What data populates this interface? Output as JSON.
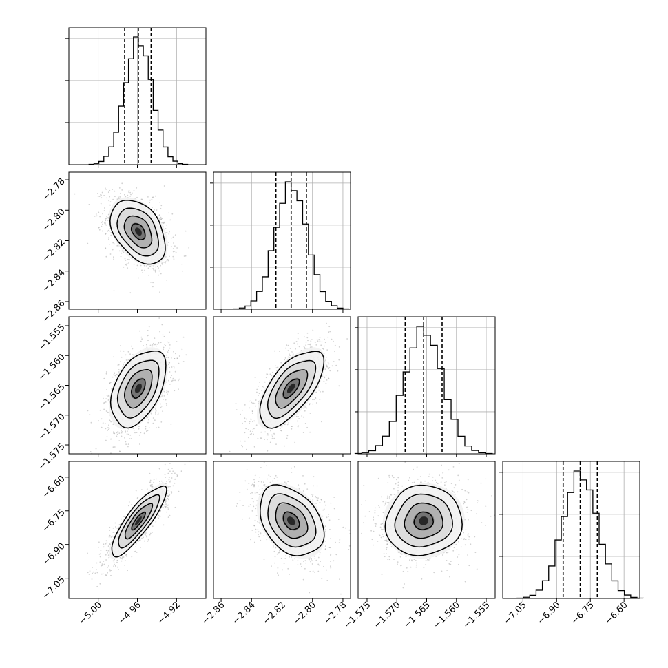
{
  "chart_data": {
    "type": "corner",
    "title": "",
    "grid": true,
    "colors": {
      "line": "#000000",
      "points": "#9a9a9a",
      "grid": "#b0b0b0"
    },
    "params": [
      {
        "index": 0,
        "range": [
          -5.03,
          -4.89
        ],
        "ticks": [
          -5.0,
          -4.96,
          -4.92
        ],
        "tick_labels": [
          "−5.00",
          "−4.96",
          "−4.92"
        ],
        "mean": -4.959,
        "sd": 0.014,
        "quantiles": [
          -4.973,
          -4.959,
          -4.946
        ]
      },
      {
        "index": 1,
        "range": [
          -2.865,
          -2.775
        ],
        "ticks": [
          -2.86,
          -2.84,
          -2.82,
          -2.8,
          -2.78
        ],
        "tick_labels": [
          "−2.86",
          "−2.84",
          "−2.82",
          "−2.80",
          "−2.78"
        ],
        "mean": -2.814,
        "sd": 0.0105,
        "quantiles": [
          -2.824,
          -2.814,
          -2.804
        ]
      },
      {
        "index": 2,
        "range": [
          -1.5765,
          -1.5535
        ],
        "ticks": [
          -1.575,
          -1.57,
          -1.565,
          -1.56,
          -1.555
        ],
        "tick_labels": [
          "−1.575",
          "−1.570",
          "−1.565",
          "−1.560",
          "−1.555"
        ],
        "mean": -1.5655,
        "sd": 0.0032,
        "quantiles": [
          -1.5686,
          -1.5655,
          -1.5624
        ]
      },
      {
        "index": 3,
        "range": [
          -7.14,
          -6.53
        ],
        "ticks": [
          -7.05,
          -6.9,
          -6.75,
          -6.6
        ],
        "tick_labels": [
          "−7.05",
          "−6.90",
          "−6.75",
          "−6.60"
        ],
        "mean": -6.795,
        "sd": 0.078,
        "quantiles": [
          -6.871,
          -6.795,
          -6.719
        ]
      }
    ],
    "correlations": [
      {
        "pair": [
          1,
          0
        ],
        "rho": -0.4
      },
      {
        "pair": [
          2,
          0
        ],
        "rho": 0.45
      },
      {
        "pair": [
          2,
          1
        ],
        "rho": 0.65
      },
      {
        "pair": [
          3,
          0
        ],
        "rho": 0.85
      },
      {
        "pair": [
          3,
          1
        ],
        "rho": -0.35
      },
      {
        "pair": [
          3,
          2
        ],
        "rho": 0.05
      }
    ],
    "contour_levels_sigma": [
      0.5,
      1.0,
      1.5,
      2.0
    ],
    "histogram_bins": 20
  }
}
